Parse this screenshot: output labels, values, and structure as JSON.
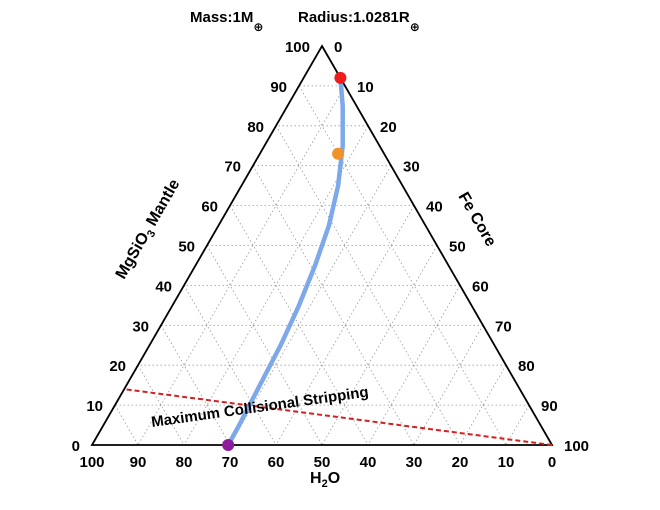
{
  "header": {
    "mass_label": "Mass:1M",
    "radius_label": "Radius:1.0281R",
    "earth_symbol": "⊕"
  },
  "axes": {
    "mantle": {
      "label": "MgSiO",
      "subscript": "3",
      "suffix": " Mantle"
    },
    "core": {
      "label": "Fe Core"
    },
    "water": {
      "label": "H",
      "subscript": "2",
      "suffix": "O"
    }
  },
  "annotation": "Maximum Collisional Stripping",
  "colors": {
    "frame": "#000000",
    "grid": "#9a9a9a",
    "curve": "#6f9fe8",
    "stripping_line": "#d42020",
    "point_top": "#ee1c1c",
    "point_mid": "#f0922a",
    "point_bottom": "#8e1a9e"
  },
  "chart_data": {
    "type": "scatter",
    "subtype": "ternary",
    "components": [
      "MgSiO3 Mantle",
      "Fe Core",
      "H2O"
    ],
    "ticks": [
      0,
      10,
      20,
      30,
      40,
      50,
      60,
      70,
      80,
      90,
      100
    ],
    "grid": true,
    "curve": [
      {
        "mantle": 92,
        "core": 8,
        "water": 0
      },
      {
        "mantle": 85,
        "core": 12,
        "water": 3
      },
      {
        "mantle": 75,
        "core": 17,
        "water": 8
      },
      {
        "mantle": 65,
        "core": 21,
        "water": 14
      },
      {
        "mantle": 55,
        "core": 24,
        "water": 21
      },
      {
        "mantle": 45,
        "core": 26,
        "water": 29
      },
      {
        "mantle": 35,
        "core": 27.5,
        "water": 37.5
      },
      {
        "mantle": 25,
        "core": 28.5,
        "water": 46.5
      },
      {
        "mantle": 15,
        "core": 29,
        "water": 56
      },
      {
        "mantle": 5,
        "core": 29.5,
        "water": 65.5
      },
      {
        "mantle": 0,
        "core": 29.6,
        "water": 70.4
      }
    ],
    "points": [
      {
        "mantle": 92,
        "core": 8,
        "water": 0,
        "color": "#ee1c1c"
      },
      {
        "mantle": 73,
        "core": 17,
        "water": 10,
        "color": "#f0922a"
      },
      {
        "mantle": 0,
        "core": 29.6,
        "water": 70.4,
        "color": "#8e1a9e"
      }
    ],
    "stripping_line": [
      {
        "mantle": 0,
        "core": 100,
        "water": 0
      },
      {
        "mantle": 14,
        "core": 0,
        "water": 86
      }
    ]
  }
}
